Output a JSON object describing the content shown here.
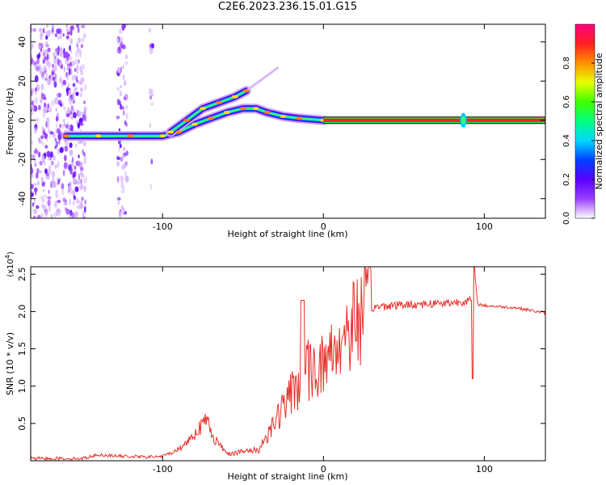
{
  "title": "C2E6.2023.236.15.01.G15",
  "chart_data": [
    {
      "type": "heatmap",
      "xlabel": "Height of straight line (km)",
      "ylabel": "Frequency (Hz)",
      "xlim": [
        -182,
        138
      ],
      "ylim": [
        -50,
        49
      ],
      "x_ticks": [
        "-100",
        "0",
        "100"
      ],
      "y_ticks": [
        "-40",
        "-20",
        "0",
        "20",
        "40"
      ],
      "colorbar": {
        "label": "Normalized spectral amplitude",
        "ticks": [
          "0.0",
          "0.2",
          "0.4",
          "0.6",
          "0.8"
        ],
        "range": [
          0,
          1
        ],
        "colors": [
          "#ffffff",
          "#9a40ff",
          "#5a00ff",
          "#0040ff",
          "#00d8ff",
          "#00ff80",
          "#40ff00",
          "#e8ff00",
          "#ff9000",
          "#ff2020",
          "#ff0080"
        ]
      },
      "features": {
        "main_band": [
          [
            -160,
            -8
          ],
          [
            -140,
            -8
          ],
          [
            -120,
            -8
          ],
          [
            -100,
            -8
          ],
          [
            -90,
            -6
          ],
          [
            -80,
            -2
          ],
          [
            -70,
            1
          ],
          [
            -60,
            4
          ],
          [
            -50,
            6
          ],
          [
            -42,
            6
          ],
          [
            -35,
            4
          ],
          [
            -25,
            2
          ],
          [
            -15,
            1
          ],
          [
            0,
            0
          ],
          [
            138,
            0
          ]
        ],
        "upper_branch": [
          [
            -95,
            -6
          ],
          [
            -85,
            0
          ],
          [
            -75,
            6
          ],
          [
            -65,
            9
          ],
          [
            -55,
            12
          ],
          [
            -48,
            15
          ]
        ],
        "spike_x": 87
      }
    },
    {
      "type": "line",
      "xlabel": "Height of straight line (km)",
      "ylabel": "SNR (10 * v/v)",
      "y_multiplier": "(x10",
      "y_multiplier_exp": "4",
      "xlim": [
        -182,
        138
      ],
      "ylim": [
        0,
        2.6
      ],
      "x_ticks": [
        "-100",
        "0",
        "100"
      ],
      "y_ticks": [
        "0.5",
        "1.0",
        "1.5",
        "2.0",
        "2.5"
      ],
      "color": "#e8302a",
      "x": [
        -182,
        -150,
        -140,
        -125,
        -110,
        -100,
        -90,
        -85,
        -78,
        -72,
        -68,
        -60,
        -50,
        -40,
        -35,
        -30,
        -25,
        -20,
        -10,
        0,
        10,
        20,
        30,
        40,
        60,
        80,
        92,
        93,
        94,
        96,
        100,
        120,
        138
      ],
      "y": [
        0.03,
        0.03,
        0.08,
        0.06,
        0.05,
        0.06,
        0.15,
        0.25,
        0.42,
        0.55,
        0.3,
        0.1,
        0.12,
        0.15,
        0.35,
        0.55,
        0.7,
        0.9,
        1.2,
        1.3,
        1.6,
        1.9,
        2.05,
        2.08,
        2.1,
        2.12,
        2.15,
        1.1,
        2.5,
        2.1,
        2.08,
        2.05,
        1.98
      ]
    }
  ]
}
